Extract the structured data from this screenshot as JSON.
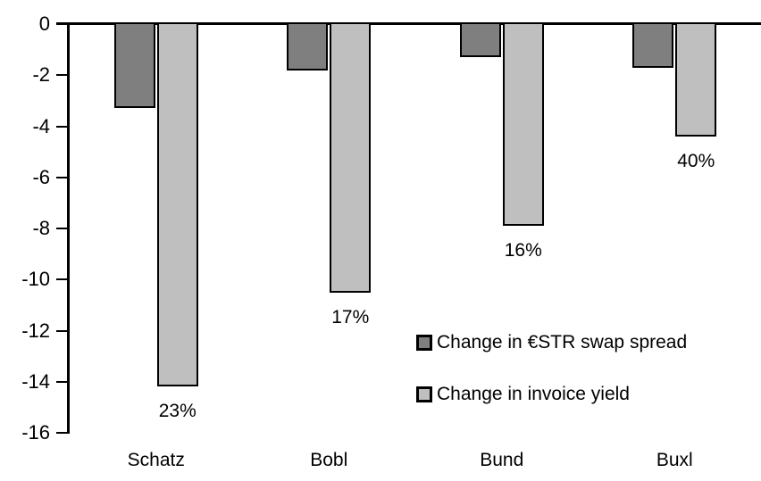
{
  "chart_data": {
    "type": "bar",
    "title": "",
    "xlabel": "",
    "ylabel": "",
    "categories": [
      "Schatz",
      "Bobl",
      "Bund",
      "Buxl"
    ],
    "series": [
      {
        "name": "Change in €STR swap spread",
        "color": "#7f7f7f",
        "values": [
          -3.3,
          -1.8,
          -1.3,
          -1.7
        ]
      },
      {
        "name": "Change in invoice yield",
        "color": "#bfbfbf",
        "values": [
          -14.2,
          -10.5,
          -7.9,
          -4.4
        ]
      }
    ],
    "bar_labels": {
      "series": "Change in invoice yield",
      "values": [
        "23%",
        "17%",
        "16%",
        "40%"
      ]
    },
    "ylim": [
      -16,
      0
    ],
    "yticks": [
      0,
      -2,
      -4,
      -6,
      -8,
      -10,
      -12,
      -14,
      -16
    ],
    "grid": false,
    "legend_position": "inside-right-middle",
    "colors": {
      "bar_border": "#000000",
      "axis": "#000000",
      "text": "#000000",
      "background": "#ffffff"
    }
  }
}
